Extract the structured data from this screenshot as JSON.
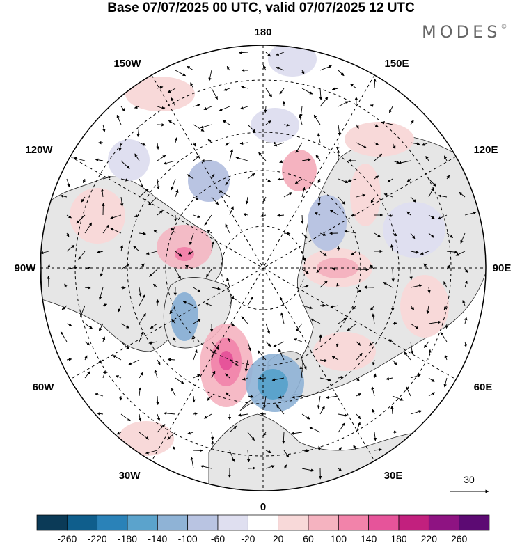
{
  "title": "Base 07/07/2025 00 UTC, valid 07/07/2025 12 UTC",
  "logo": "MODES",
  "logo_mark": "©",
  "longitude_labels": {
    "top": "180",
    "bottom": "0",
    "left": "90W",
    "right": "90E",
    "upper_left": "150W",
    "upper_left_2": "120W",
    "upper_right": "150E",
    "upper_right_2": "120E",
    "lower_left": "60W",
    "lower_left_2": "30W",
    "lower_right": "60E",
    "lower_right_2": "30E"
  },
  "reference_vector": "30",
  "colorbar": {
    "ticks": [
      "-260",
      "-220",
      "-180",
      "-140",
      "-100",
      "-60",
      "-20",
      "20",
      "60",
      "100",
      "140",
      "180",
      "220",
      "260"
    ],
    "colors": [
      "#0b3a57",
      "#0f5e8c",
      "#2a82b8",
      "#5ba3cc",
      "#8fb3d6",
      "#b9c4e2",
      "#dfdff0",
      "#ffffff",
      "#f8d9d9",
      "#f5b3c0",
      "#f283aa",
      "#e6549a",
      "#c2207e",
      "#8e1382",
      "#5c0a73"
    ]
  }
}
